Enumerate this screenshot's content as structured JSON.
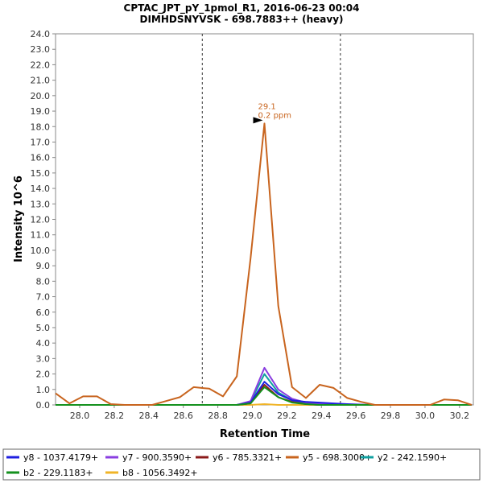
{
  "chart_data": {
    "type": "line",
    "title": "CPTAC_JPT_pY_1pmol_R1, 2016-06-23 00:04",
    "subtitle": "DIMHDSNYVSK - 698.7883++ (heavy)",
    "xlabel": "Retention Time",
    "ylabel": "Intensity 10^6",
    "xlim": [
      27.86,
      30.28
    ],
    "ylim": [
      0,
      24
    ],
    "x_ticks": [
      "28.0",
      "28.2",
      "28.4",
      "28.6",
      "28.8",
      "29.0",
      "29.2",
      "29.4",
      "29.6",
      "29.8",
      "30.0",
      "30.2"
    ],
    "y_ticks": [
      "0.0",
      "1.0",
      "2.0",
      "3.0",
      "4.0",
      "5.0",
      "6.0",
      "7.0",
      "8.0",
      "9.0",
      "10.0",
      "11.0",
      "12.0",
      "13.0",
      "14.0",
      "15.0",
      "16.0",
      "17.0",
      "18.0",
      "19.0",
      "20.0",
      "21.0",
      "22.0",
      "23.0",
      "24.0"
    ],
    "boundaries": [
      28.71,
      29.51
    ],
    "annotation": {
      "x": 29.07,
      "y": 18.2,
      "rt_label": "29.1",
      "ppm_label": "0.2 ppm",
      "color": "#c8641e"
    },
    "x": [
      27.86,
      27.94,
      28.02,
      28.1,
      28.18,
      28.26,
      28.34,
      28.42,
      28.5,
      28.58,
      28.66,
      28.75,
      28.83,
      28.91,
      28.99,
      29.07,
      29.15,
      29.23,
      29.31,
      29.39,
      29.47,
      29.55,
      29.63,
      29.71,
      29.79,
      29.87,
      29.95,
      30.03,
      30.11,
      30.19,
      30.27
    ],
    "series": [
      {
        "name": "y8 - 1037.4179+",
        "color": "#1f1fe0",
        "values": [
          0,
          0,
          0,
          0,
          0,
          0,
          0,
          0,
          0,
          0,
          0,
          0,
          0,
          0,
          0.15,
          1.5,
          0.7,
          0.3,
          0.2,
          0.15,
          0.1,
          0.05,
          0.02,
          0,
          0,
          0,
          0,
          0,
          0,
          0,
          0
        ]
      },
      {
        "name": "y7 - 900.3590+",
        "color": "#8a3ee0",
        "values": [
          0,
          0,
          0,
          0,
          0,
          0,
          0,
          0,
          0,
          0,
          0,
          0,
          0,
          0,
          0.25,
          2.4,
          1.0,
          0.4,
          0.15,
          0.05,
          0,
          0,
          0,
          0,
          0,
          0,
          0,
          0,
          0,
          0,
          0
        ]
      },
      {
        "name": "y6 - 785.3321+",
        "color": "#8b1a1a",
        "values": [
          0,
          0,
          0,
          0,
          0,
          0,
          0,
          0,
          0,
          0,
          0,
          0,
          0,
          0,
          0.1,
          1.3,
          0.5,
          0.2,
          0.05,
          0,
          0,
          0,
          0,
          0,
          0,
          0,
          0,
          0,
          0,
          0,
          0
        ]
      },
      {
        "name": "y5 - 698.3000+",
        "color": "#c8641e",
        "values": [
          0.75,
          0.1,
          0.55,
          0.55,
          0.05,
          0,
          0,
          0,
          0.25,
          0.5,
          1.15,
          1.05,
          0.55,
          1.85,
          9.5,
          18.2,
          6.4,
          1.15,
          0.45,
          1.3,
          1.1,
          0.45,
          0.2,
          0,
          0,
          0,
          0,
          0,
          0.35,
          0.3,
          0
        ]
      },
      {
        "name": "y2 - 242.1590+",
        "color": "#10a0a0",
        "values": [
          0,
          0,
          0,
          0,
          0,
          0,
          0,
          0,
          0,
          0,
          0,
          0,
          0,
          0,
          0.2,
          2.0,
          0.8,
          0.3,
          0.1,
          0.05,
          0,
          0,
          0,
          0,
          0,
          0,
          0,
          0,
          0,
          0,
          0
        ]
      },
      {
        "name": "b2 - 229.1183+",
        "color": "#14911e",
        "values": [
          0,
          0,
          0,
          0,
          0,
          0,
          0,
          0,
          0,
          0,
          0,
          0,
          0,
          0,
          0.1,
          1.15,
          0.5,
          0.15,
          0.05,
          0,
          0,
          0,
          0,
          0,
          0,
          0,
          0,
          0,
          0,
          0,
          0
        ]
      },
      {
        "name": "b8 - 1056.3492+",
        "color": "#f0b428",
        "values": [
          0,
          0,
          0,
          0,
          0,
          0,
          0,
          0,
          0,
          0,
          0,
          0,
          0,
          0,
          0,
          0.05,
          0,
          0,
          0,
          0,
          0,
          0,
          0,
          0,
          0,
          0,
          0,
          0,
          0,
          0,
          0
        ]
      }
    ],
    "draw_order": [
      6,
      4,
      2,
      1,
      0,
      5,
      3
    ],
    "legend_position": "bottom"
  }
}
